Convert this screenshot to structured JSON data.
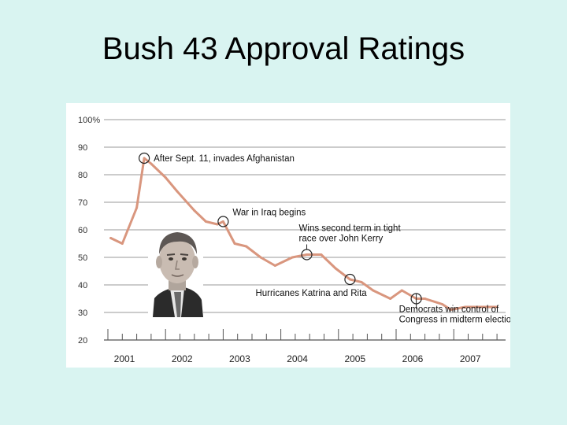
{
  "title": "Bush 43 Approval Ratings",
  "chart_data": {
    "type": "line",
    "title": "",
    "xlabel": "",
    "ylabel": "",
    "ylim": [
      20,
      100
    ],
    "y_ticks": [
      "100%",
      "90",
      "80",
      "70",
      "60",
      "50",
      "40",
      "30",
      "20"
    ],
    "x_ticks": [
      "2001",
      "2002",
      "2003",
      "2004",
      "2005",
      "2006",
      "2007"
    ],
    "xlim": [
      2001.0,
      2008.0
    ],
    "grid": true,
    "line_color": "#d9967e",
    "series": [
      {
        "x": [
          2001.05,
          2001.25,
          2001.5,
          2001.63,
          2001.75,
          2002.0,
          2002.2,
          2002.5,
          2002.7,
          2002.9,
          2003.0,
          2003.2,
          2003.4,
          2003.65,
          2003.9,
          2004.2,
          2004.45,
          2004.7,
          2004.95,
          2005.2,
          2005.4,
          2005.6,
          2005.9,
          2006.1,
          2006.35,
          2006.5,
          2006.8,
          2006.95,
          2007.2,
          2007.5,
          2007.75
        ],
        "y": [
          57,
          55,
          68,
          86,
          84,
          79,
          74,
          67,
          63,
          62,
          63,
          55,
          54,
          50,
          47,
          50,
          51,
          51,
          46,
          42,
          41,
          38,
          35,
          38,
          35,
          35,
          33,
          31,
          32,
          32,
          32
        ]
      }
    ],
    "annotations": [
      {
        "text": [
          "After Sept. 11, invades Afghanistan"
        ],
        "x": 2001.63,
        "y": 86
      },
      {
        "text": [
          "War in Iraq begins"
        ],
        "x": 2003.0,
        "y": 63
      },
      {
        "text": [
          "Wins second term in tight",
          "race over John Kerry"
        ],
        "x": 2004.45,
        "y": 51
      },
      {
        "text": [
          "Hurricanes Katrina and Rita"
        ],
        "x": 2005.2,
        "y": 42
      },
      {
        "text": [
          "Democrats win control of",
          "Congress in midterm elections"
        ],
        "x": 2006.35,
        "y": 35
      }
    ]
  }
}
